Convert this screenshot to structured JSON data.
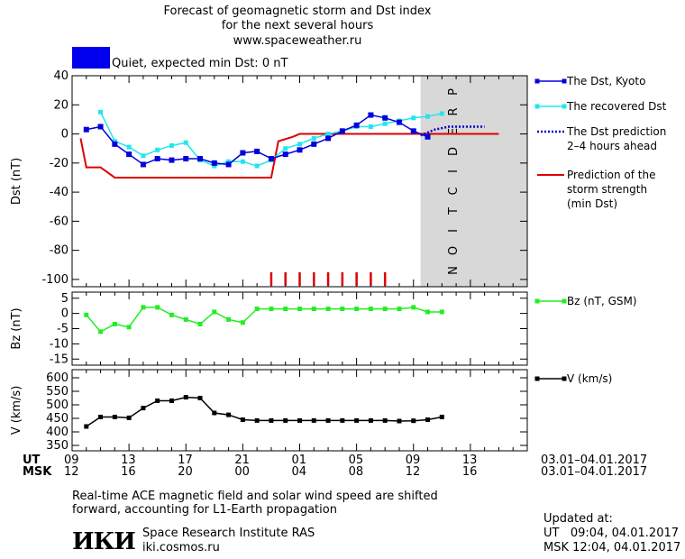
{
  "header": {
    "title_line1": "Forecast of geomagnetic storm and Dst index",
    "title_line2": "for the next several hours",
    "site": "www.spaceweather.ru",
    "status": "Quiet, expected min Dst: 0 nT",
    "status_color": "#0000ee"
  },
  "colors": {
    "dst_kyoto": "#0000dd",
    "dst_recovered": "#22e6ee",
    "dst_prediction": "#0000cc",
    "storm_strength": "#dd0000",
    "bz": "#22ee22",
    "speed": "#000000",
    "prediction_band": "#d8d8d8",
    "prediction_letters": "#b8b8b8"
  },
  "chart_data": [
    {
      "type": "line",
      "ylabel": "Dst (nT)",
      "ylim": [
        -105,
        40
      ],
      "yticks": [
        40,
        20,
        0,
        -20,
        -40,
        -60,
        -80,
        -100
      ],
      "x_hours_from_09UT": [
        1,
        2,
        3,
        4,
        5,
        6,
        7,
        8,
        9,
        10,
        11,
        12,
        13,
        14,
        15,
        16,
        17,
        18,
        19,
        20,
        21,
        22,
        23,
        24,
        25,
        26
      ],
      "prediction_label": "PREDICTION",
      "series": [
        {
          "name": "The Dst, Kyoto",
          "values": [
            3,
            5,
            -7,
            -14,
            -21,
            -17,
            -18,
            -17,
            -17,
            -20,
            -21,
            -13,
            -12,
            -17,
            -14,
            -11,
            -7,
            -3,
            2,
            6,
            13,
            11,
            8,
            2,
            -2,
            null
          ]
        },
        {
          "name": "The recovered Dst",
          "values": [
            null,
            15,
            -5,
            -9,
            -15,
            -11,
            -8,
            -6,
            -18,
            -22,
            -19,
            -19,
            -22,
            -18,
            -10,
            -7,
            -3,
            0,
            2,
            5,
            5,
            7,
            9,
            11,
            12,
            14
          ]
        },
        {
          "name": "The Dst prediction\n2–4 hours ahead",
          "x": [
            24.5,
            25.0,
            25.5,
            26.0,
            26.5,
            27.0,
            28.0,
            29.0
          ],
          "values": [
            -1,
            1,
            3,
            4,
            5,
            5,
            5,
            5
          ]
        },
        {
          "name": "Prediction of the\nstorm strength\n(min Dst)",
          "step_x": [
            0.6,
            1.0,
            2.0,
            3.0,
            4.0,
            14.0,
            14.5,
            15.5,
            16.0,
            30.0
          ],
          "step_values": [
            -3,
            -23,
            -23,
            -30,
            -30,
            -30,
            -5,
            -2,
            0,
            0
          ]
        }
      ],
      "storm_markers_x": [
        14,
        15,
        16,
        17,
        18,
        19,
        20,
        21,
        22
      ]
    },
    {
      "type": "line",
      "ylabel": "Bz (nT)",
      "ylim": [
        -17,
        7
      ],
      "yticks": [
        5,
        0,
        -5,
        -10,
        -15
      ],
      "series": [
        {
          "name": "Bz (nT, GSM)",
          "x": [
            1,
            2,
            3,
            4,
            5,
            6,
            7,
            8,
            9,
            10,
            11,
            12,
            13,
            14,
            15,
            16,
            17,
            18,
            19,
            20,
            21,
            22,
            23,
            24,
            25,
            26
          ],
          "values": [
            -0.5,
            -6,
            -3.5,
            -4.5,
            2,
            2,
            -0.5,
            -2,
            -3.5,
            0.5,
            -2,
            -3,
            1.5,
            1.5,
            1.5,
            1.5,
            1.5,
            1.5,
            1.5,
            1.5,
            1.5,
            1.5,
            1.5,
            2,
            0.5,
            0.5
          ]
        }
      ]
    },
    {
      "type": "line",
      "ylabel": "V (km/s)",
      "ylim": [
        330,
        630
      ],
      "yticks": [
        600,
        550,
        500,
        450,
        400,
        350
      ],
      "series": [
        {
          "name": "V (km/s)",
          "x": [
            1,
            2,
            3,
            4,
            5,
            6,
            7,
            8,
            9,
            10,
            11,
            12,
            13,
            14,
            15,
            16,
            17,
            18,
            19,
            20,
            21,
            22,
            23,
            24,
            25,
            26
          ],
          "values": [
            420,
            455,
            455,
            452,
            488,
            515,
            515,
            528,
            525,
            470,
            463,
            445,
            442,
            442,
            442,
            442,
            442,
            442,
            442,
            442,
            442,
            442,
            440,
            441,
            445,
            455
          ]
        }
      ]
    }
  ],
  "time_axis": {
    "ut_label": "UT",
    "msk_label": "MSK",
    "ut_ticks": [
      "09",
      "13",
      "17",
      "21",
      "01",
      "05",
      "09",
      "13"
    ],
    "msk_ticks": [
      "12",
      "16",
      "20",
      "00",
      "04",
      "08",
      "12",
      "16"
    ],
    "range_ut": "03.01–04.01.2017",
    "range_msk": "03.01–04.01.2017"
  },
  "footer": {
    "note_line1": "Real-time ACE magnetic field and solar wind speed are shifted",
    "note_line2": "forward, accounting for L1-Earth propagation",
    "logo_text": "ИКИ",
    "institute": "Space Research Institute RAS",
    "institute_url": "iki.cosmos.ru",
    "updated_label": "Updated at:",
    "updated_ut": "UT   09:04, 04.01.2017",
    "updated_msk": "MSK 12:04, 04.01.2017"
  }
}
